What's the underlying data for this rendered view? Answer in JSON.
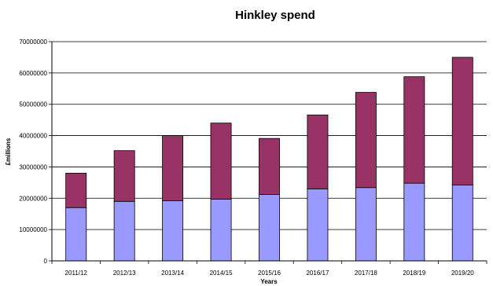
{
  "chart_data": {
    "type": "bar",
    "stacked": true,
    "title": "Hinkley spend",
    "xlabel": "Years",
    "ylabel": "£millions",
    "categories": [
      "2011/12",
      "2012/13",
      "2013/14",
      "2014/15",
      "2015/16",
      "2016/17",
      "2017/18",
      "2018/19",
      "2019/20"
    ],
    "series": [
      {
        "color": "#9999ff",
        "values": [
          17000000,
          19000000,
          19200000,
          19700000,
          21200000,
          23000000,
          23400000,
          24800000,
          24200000
        ]
      },
      {
        "color": "#993366",
        "values": [
          11000000,
          16200000,
          20800000,
          24300000,
          17900000,
          23600000,
          30400000,
          34000000,
          40800000
        ]
      }
    ],
    "ylim": [
      0,
      70000000
    ],
    "yticks": [
      0,
      10000000,
      20000000,
      30000000,
      40000000,
      50000000,
      60000000,
      70000000
    ],
    "grid": true,
    "legend": "none"
  }
}
